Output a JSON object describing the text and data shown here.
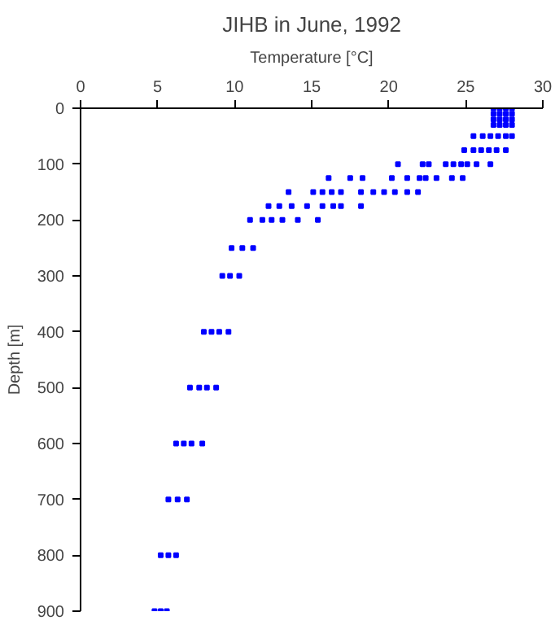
{
  "chart_data": {
    "type": "scatter",
    "title": "JIHB in June, 1992",
    "xlabel": "Temperature [°C]",
    "ylabel": "Depth [m]",
    "xlim": [
      0,
      30
    ],
    "xticks": [
      0,
      5,
      10,
      15,
      20,
      25,
      30
    ],
    "ylim": [
      900,
      0
    ],
    "yticks": [
      0,
      100,
      200,
      300,
      400,
      500,
      600,
      700,
      800,
      900
    ],
    "grid": false,
    "marker": "square",
    "series": [
      {
        "color": "#0000ff",
        "x": [
          26.8,
          27.2,
          27.6,
          28.0,
          26.8,
          27.2,
          27.6,
          28.0,
          26.8,
          27.2,
          27.6,
          28.0,
          26.8,
          27.2,
          27.6,
          28.0,
          25.5,
          26.1,
          26.6,
          27.1,
          27.6,
          28.0,
          24.9,
          25.5,
          26.0,
          26.5,
          27.0,
          27.6,
          20.6,
          22.2,
          22.6,
          23.7,
          24.2,
          24.7,
          25.1,
          25.7,
          26.6,
          16.1,
          17.5,
          18.3,
          20.2,
          21.2,
          22.0,
          22.4,
          23.1,
          24.1,
          24.8,
          13.5,
          15.1,
          15.7,
          16.3,
          16.9,
          18.2,
          19.0,
          19.7,
          20.4,
          21.2,
          21.9,
          12.2,
          12.9,
          13.7,
          14.7,
          15.7,
          16.4,
          16.9,
          18.2,
          11.0,
          11.8,
          12.4,
          13.1,
          14.1,
          15.4,
          9.8,
          10.5,
          11.2,
          9.2,
          9.7,
          10.3,
          8.0,
          8.5,
          9.0,
          9.6,
          7.1,
          7.7,
          8.2,
          8.8,
          6.2,
          6.7,
          7.2,
          7.9,
          5.7,
          6.3,
          6.9,
          5.2,
          5.7,
          6.2,
          4.8,
          5.2,
          5.6
        ],
        "values": [
          0,
          0,
          0,
          0,
          10,
          10,
          10,
          10,
          20,
          20,
          20,
          20,
          30,
          30,
          30,
          30,
          50,
          50,
          50,
          50,
          50,
          50,
          75,
          75,
          75,
          75,
          75,
          75,
          100,
          100,
          100,
          100,
          100,
          100,
          100,
          100,
          100,
          125,
          125,
          125,
          125,
          125,
          125,
          125,
          125,
          125,
          125,
          150,
          150,
          150,
          150,
          150,
          150,
          150,
          150,
          150,
          150,
          150,
          175,
          175,
          175,
          175,
          175,
          175,
          175,
          175,
          200,
          200,
          200,
          200,
          200,
          200,
          250,
          250,
          250,
          300,
          300,
          300,
          400,
          400,
          400,
          400,
          500,
          500,
          500,
          500,
          600,
          600,
          600,
          600,
          700,
          700,
          700,
          800,
          800,
          800,
          900,
          900,
          900
        ]
      }
    ]
  }
}
